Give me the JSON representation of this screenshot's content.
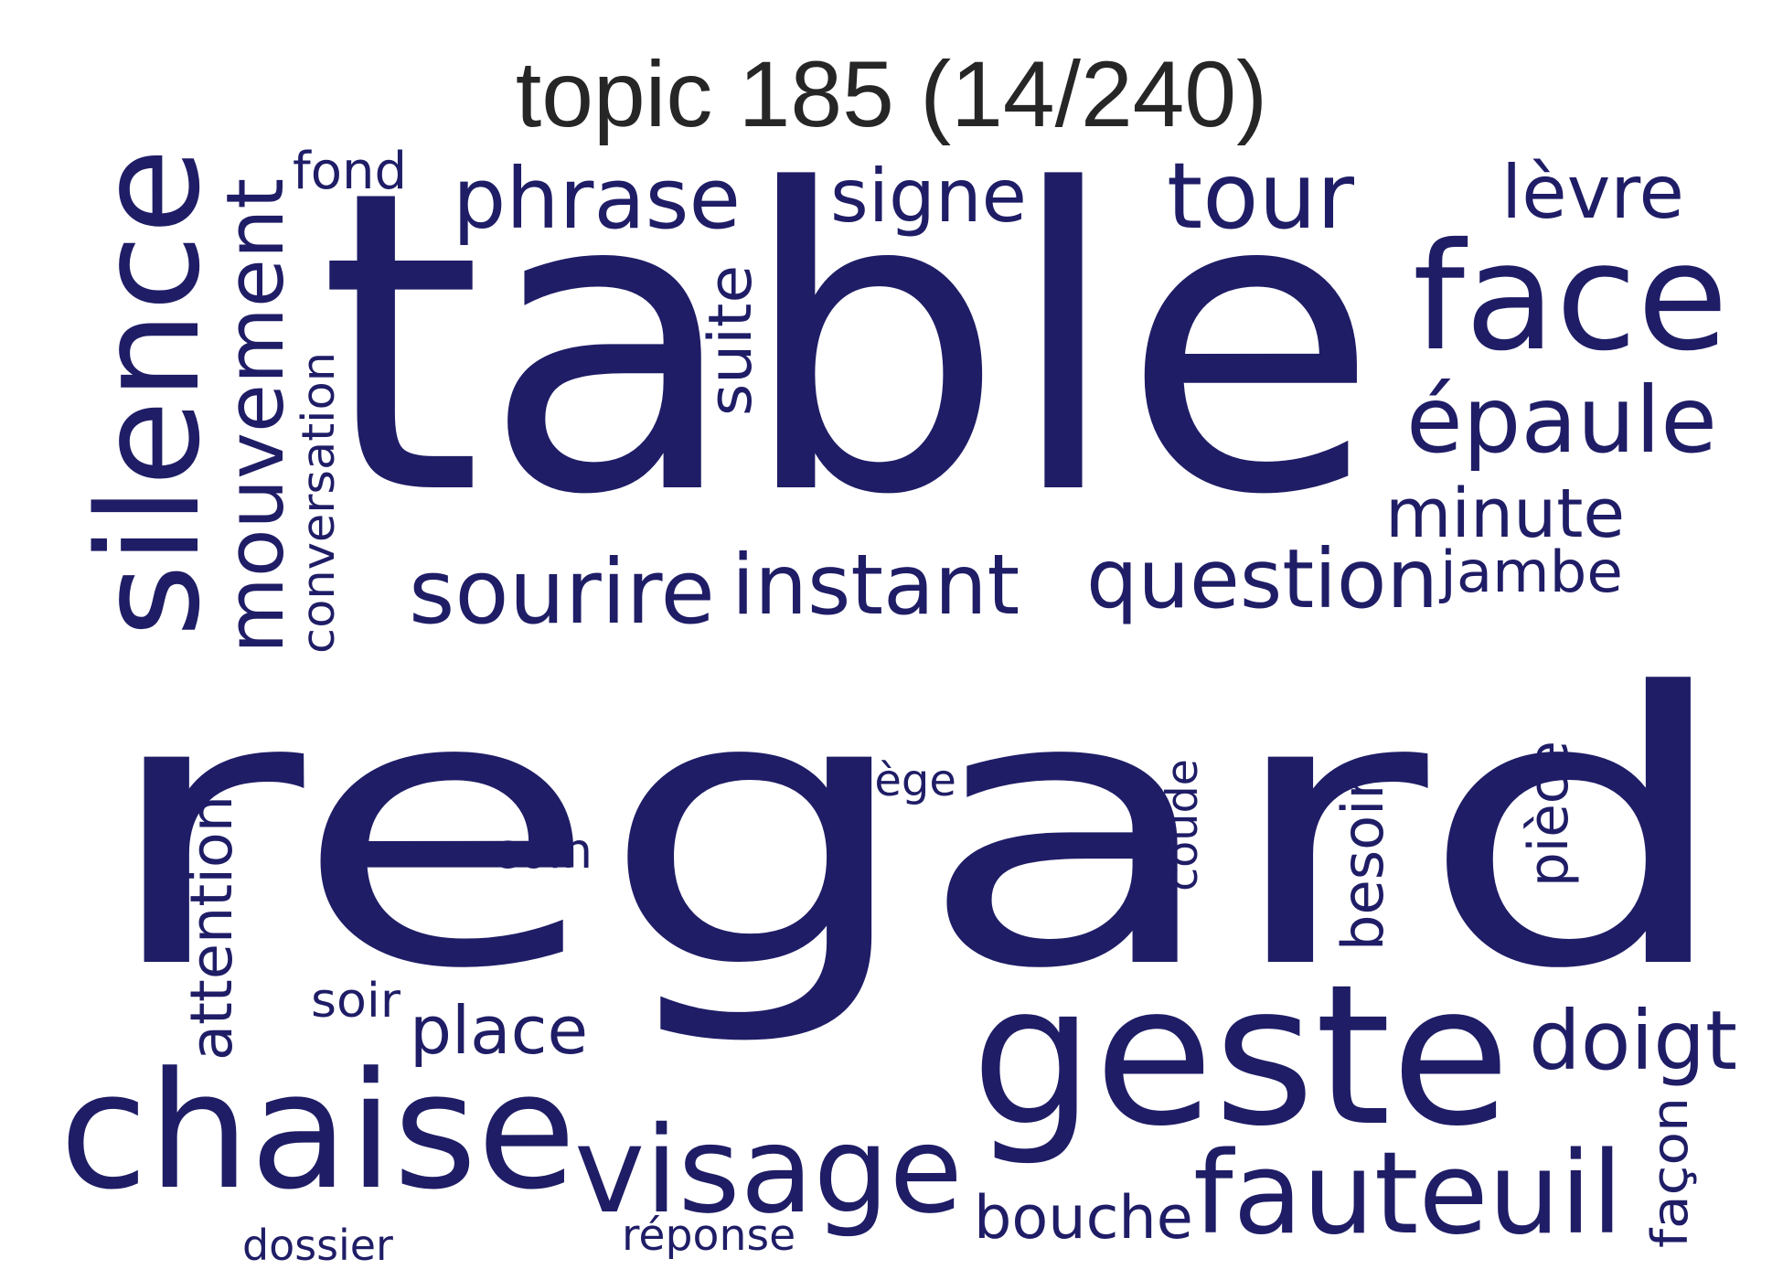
{
  "title": "topic 185 (14/240)",
  "color": "#1f1d66",
  "words": [
    {
      "text": "regard",
      "weight": 1.0,
      "vertical": false
    },
    {
      "text": "table",
      "weight": 0.82,
      "vertical": false
    },
    {
      "text": "geste",
      "weight": 0.5,
      "vertical": false
    },
    {
      "text": "chaise",
      "weight": 0.44,
      "vertical": false
    },
    {
      "text": "silence",
      "weight": 0.36,
      "vertical": true
    },
    {
      "text": "face",
      "weight": 0.34,
      "vertical": false
    },
    {
      "text": "visage",
      "weight": 0.33,
      "vertical": false
    },
    {
      "text": "fauteuil",
      "weight": 0.3,
      "vertical": false
    },
    {
      "text": "épaule",
      "weight": 0.24,
      "vertical": false
    },
    {
      "text": "mouvement",
      "weight": 0.22,
      "vertical": true
    },
    {
      "text": "question",
      "weight": 0.22,
      "vertical": false
    },
    {
      "text": "instant",
      "weight": 0.22,
      "vertical": false
    },
    {
      "text": "sourire",
      "weight": 0.22,
      "vertical": false
    },
    {
      "text": "doigt",
      "weight": 0.2,
      "vertical": false
    },
    {
      "text": "phrase",
      "weight": 0.2,
      "vertical": false
    },
    {
      "text": "tour",
      "weight": 0.2,
      "vertical": false
    },
    {
      "text": "signe",
      "weight": 0.18,
      "vertical": false
    },
    {
      "text": "lèvre",
      "weight": 0.18,
      "vertical": false
    },
    {
      "text": "place",
      "weight": 0.17,
      "vertical": false
    },
    {
      "text": "minute",
      "weight": 0.16,
      "vertical": false
    },
    {
      "text": "besoin",
      "weight": 0.15,
      "vertical": true
    },
    {
      "text": "attention",
      "weight": 0.15,
      "vertical": true
    },
    {
      "text": "bouche",
      "weight": 0.15,
      "vertical": false
    },
    {
      "text": "suite",
      "weight": 0.15,
      "vertical": true
    },
    {
      "text": "pièce",
      "weight": 0.13,
      "vertical": true
    },
    {
      "text": "conversation",
      "weight": 0.12,
      "vertical": true
    },
    {
      "text": "jambe",
      "weight": 0.12,
      "vertical": false
    },
    {
      "text": "façon",
      "weight": 0.12,
      "vertical": true
    },
    {
      "text": "coude",
      "weight": 0.1,
      "vertical": true
    },
    {
      "text": "coin",
      "weight": 0.1,
      "vertical": false
    },
    {
      "text": "dossier",
      "weight": 0.1,
      "vertical": false
    },
    {
      "text": "fond",
      "weight": 0.1,
      "vertical": false
    },
    {
      "text": "siège",
      "weight": 0.1,
      "vertical": false
    },
    {
      "text": "réponse",
      "weight": 0.09,
      "vertical": false
    },
    {
      "text": "soir",
      "weight": 0.09,
      "vertical": false
    }
  ]
}
